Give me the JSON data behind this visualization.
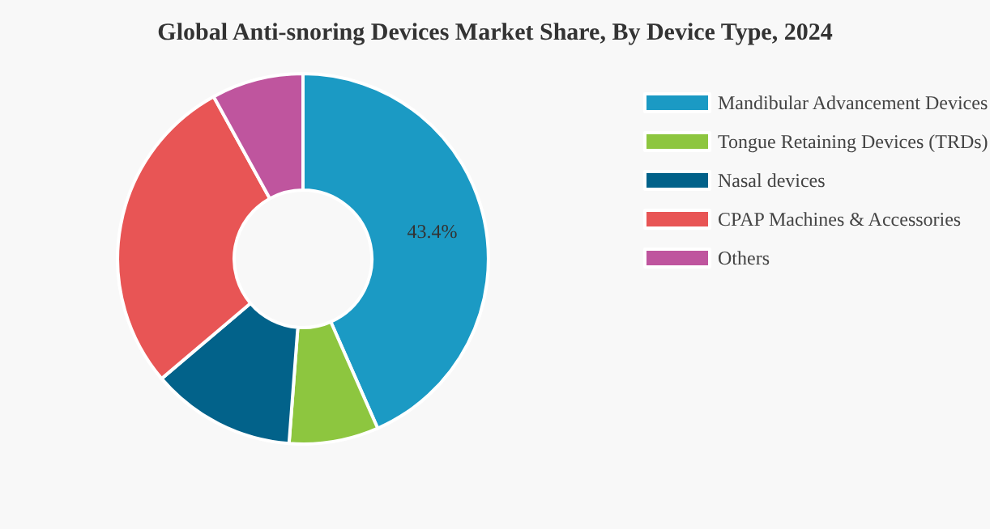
{
  "chart_data": {
    "type": "donut",
    "title": "Global Anti-snoring Devices Market Share, By Device Type, 2024",
    "categories": [
      "Mandibular Advancement Devices",
      "Tongue Retaining Devices (TRDs)",
      "Nasal devices",
      "CPAP Machines & Accessories",
      "Others"
    ],
    "values": [
      43.4,
      7.8,
      12.6,
      28.2,
      8.0
    ],
    "colors": [
      "#1b9ac4",
      "#8dc63f",
      "#02628a",
      "#e85555",
      "#bf559e"
    ],
    "value_labels": [
      "43.4%",
      null,
      null,
      null,
      null
    ],
    "legend": "right"
  }
}
